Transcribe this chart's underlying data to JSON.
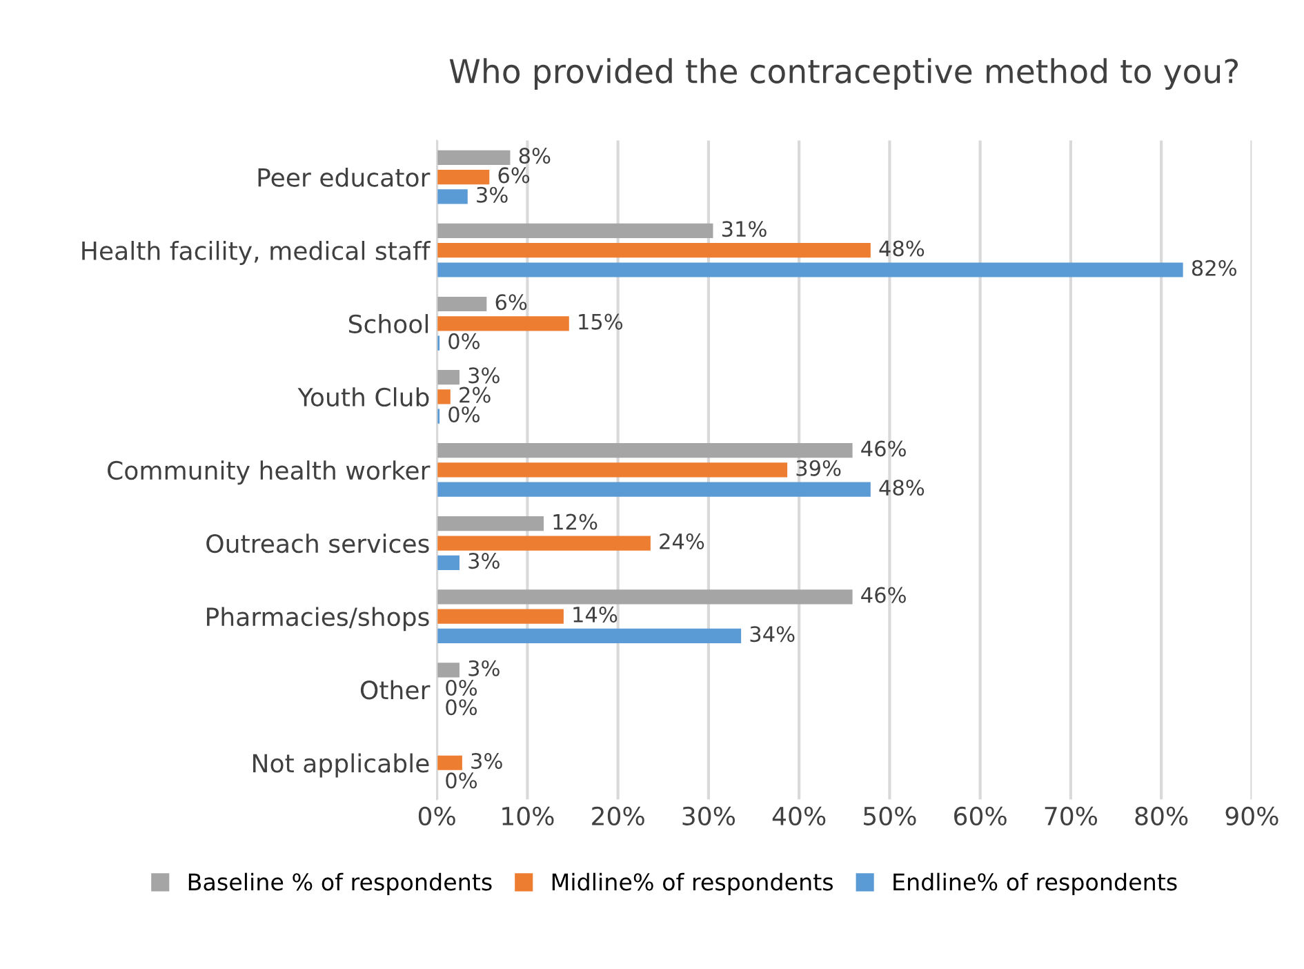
{
  "chart_data": {
    "type": "bar",
    "orientation": "horizontal",
    "title": "Who provided the contraceptive method to you?",
    "categories": [
      "Peer educator",
      "Health facility, medical staff",
      "School",
      "Youth Club",
      "Community health worker",
      "Outreach services",
      "Pharmacies/shops",
      "Other",
      "Not applicable"
    ],
    "series": [
      {
        "name": "Baseline % of respondents",
        "color": "#a5a5a5",
        "values": [
          8.1,
          30.5,
          5.5,
          2.5,
          45.9,
          11.8,
          45.9,
          2.5,
          null
        ],
        "value_labels": [
          "8%",
          "31%",
          "6%",
          "3%",
          "46%",
          "12%",
          "46%",
          "3%",
          null
        ]
      },
      {
        "name": "Midline% of respondents",
        "color": "#ed7d31",
        "values": [
          5.8,
          47.9,
          14.6,
          1.5,
          38.7,
          23.6,
          14.0,
          0,
          2.8
        ],
        "value_labels": [
          "6%",
          "48%",
          "15%",
          "2%",
          "39%",
          "24%",
          "14%",
          "0%",
          "3%"
        ]
      },
      {
        "name": "Endline% of respondents",
        "color": "#5b9bd5",
        "values": [
          3.4,
          82.4,
          0.3,
          0.3,
          47.9,
          2.5,
          33.6,
          0,
          0
        ],
        "value_labels": [
          "3%",
          "82%",
          "0%",
          "0%",
          "48%",
          "3%",
          "34%",
          "0%",
          "0%"
        ]
      }
    ],
    "xlim": [
      0,
      90
    ],
    "xticks": [
      {
        "value": 0,
        "label": "0%"
      },
      {
        "value": 10,
        "label": "10%"
      },
      {
        "value": 20,
        "label": "20%"
      },
      {
        "value": 30,
        "label": "30%"
      },
      {
        "value": 40,
        "label": "40%"
      },
      {
        "value": 50,
        "label": "50%"
      },
      {
        "value": 60,
        "label": "60%"
      },
      {
        "value": 70,
        "label": "70%"
      },
      {
        "value": 80,
        "label": "80%"
      },
      {
        "value": 90,
        "label": "90%"
      }
    ],
    "grid": "x",
    "legend": "bottom"
  }
}
